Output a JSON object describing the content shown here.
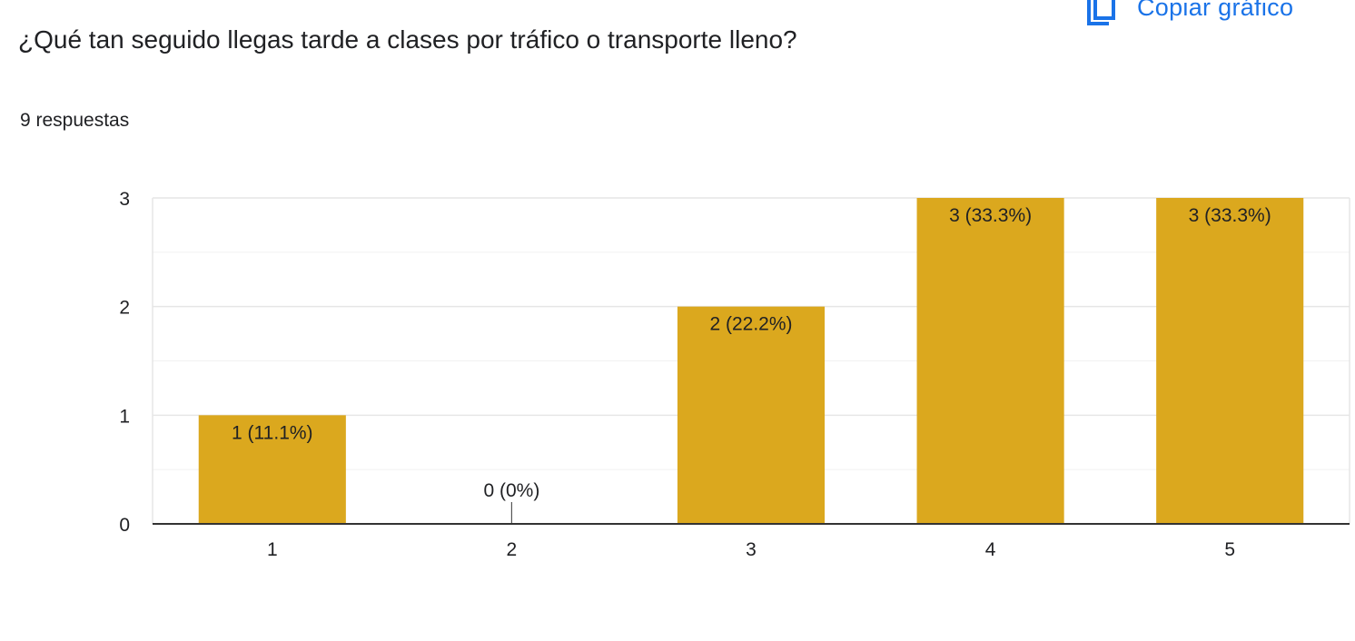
{
  "header": {
    "question": "¿Qué tan seguido llegas tarde a clases por tráfico o transporte lleno?",
    "responses": "9 respuestas",
    "copy_label": "Copiar gráfico",
    "copy_icon": "copy-icon"
  },
  "colors": {
    "bar": "#dba81e",
    "accent": "#1a73e8",
    "grid": "#e6e6e6",
    "axis": "#333333",
    "text": "#202124"
  },
  "chart_data": {
    "type": "bar",
    "categories": [
      "1",
      "2",
      "3",
      "4",
      "5"
    ],
    "values": [
      1,
      0,
      2,
      3,
      3
    ],
    "data_labels": [
      "1 (11.1%)",
      "0 (0%)",
      "2 (22.2%)",
      "3 (33.3%)",
      "3 (33.3%)"
    ],
    "y_ticks": [
      "0",
      "1",
      "2",
      "3"
    ],
    "ylim": [
      0,
      3
    ],
    "grid": true,
    "title": "",
    "xlabel": "",
    "ylabel": ""
  }
}
